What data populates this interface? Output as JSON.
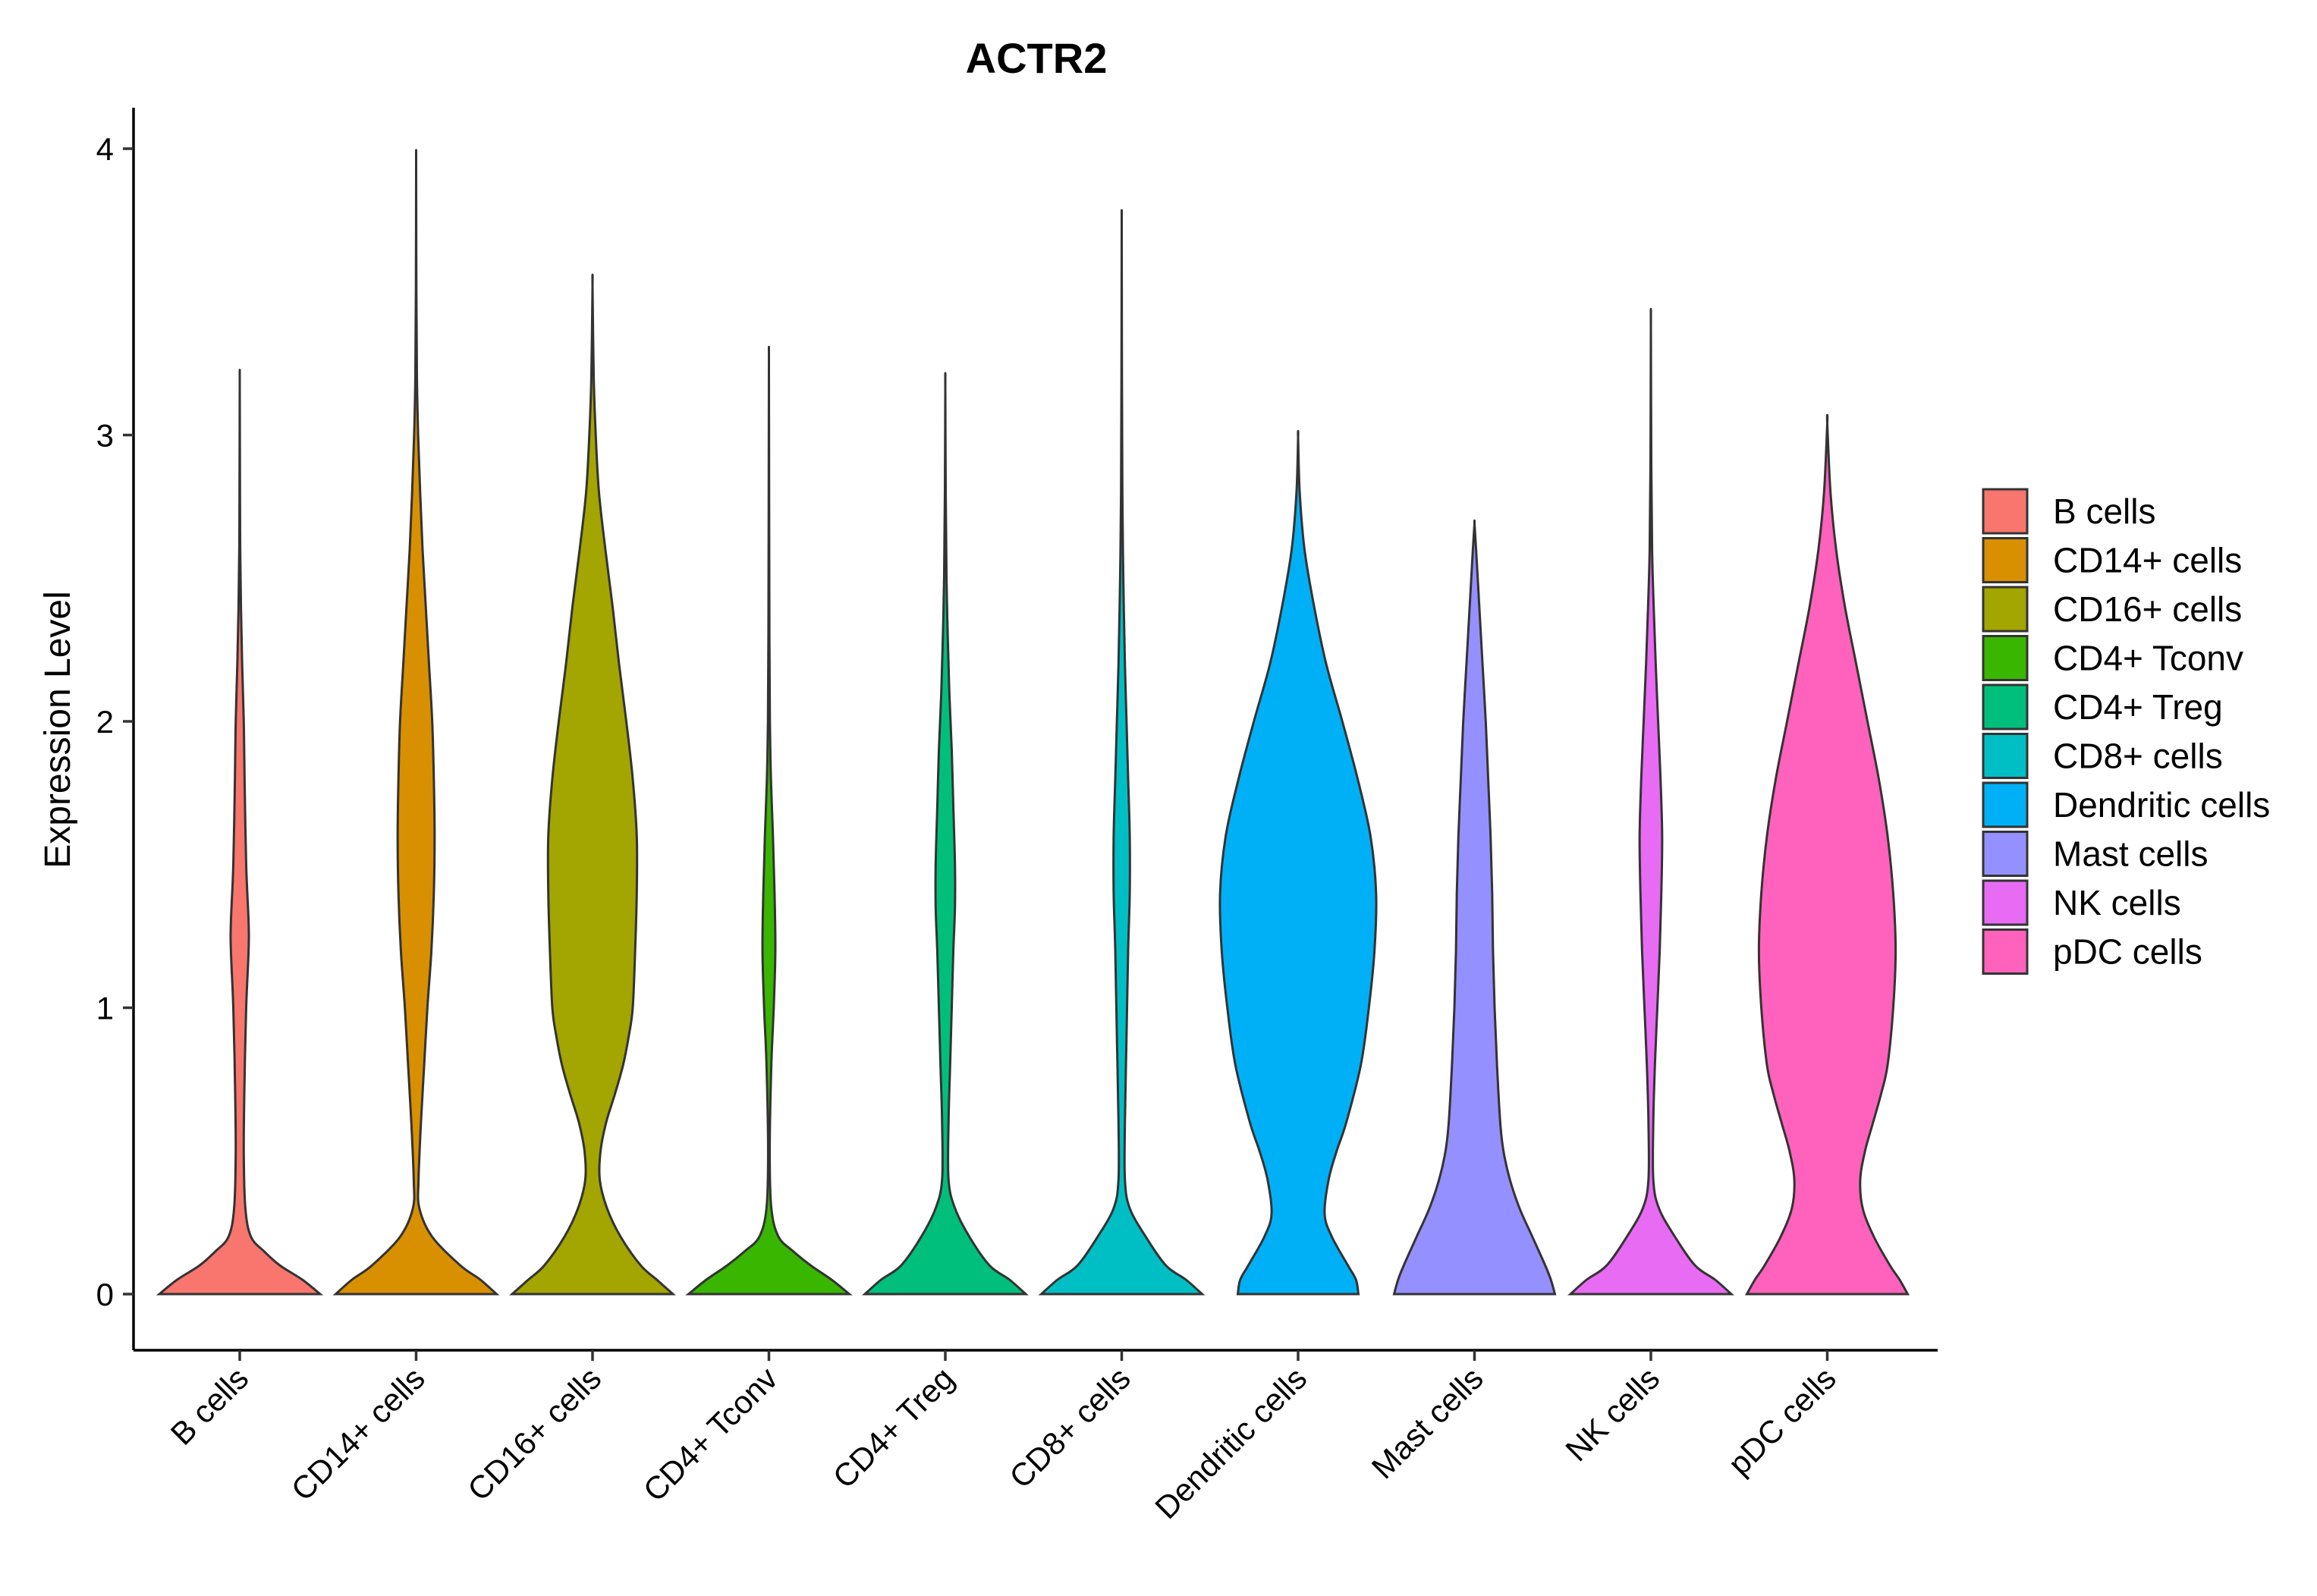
{
  "chart_data": {
    "type": "violin",
    "title": "ACTR2",
    "xlabel": "",
    "ylabel": "Expression Level",
    "ylim": [
      -0.2,
      4.15
    ],
    "yticks": [
      0,
      1,
      2,
      3,
      4
    ],
    "grid": false,
    "legend_position": "right",
    "categories": [
      "B cells",
      "CD14+ cells",
      "CD16+ cells",
      "CD4+ Tconv",
      "CD4+ Treg",
      "CD8+ cells",
      "Dendritic cells",
      "Mast cells",
      "NK cells",
      "pDC cells"
    ],
    "colors": [
      "#F8766D",
      "#D89000",
      "#A3A500",
      "#39B600",
      "#00BF7D",
      "#00BFC4",
      "#00B0F6",
      "#9590FF",
      "#E76BF3",
      "#FF62BC"
    ],
    "series": [
      {
        "name": "B cells",
        "max": 3.18,
        "profile": [
          [
            0,
            1.0
          ],
          [
            0.05,
            0.78
          ],
          [
            0.1,
            0.5
          ],
          [
            0.15,
            0.3
          ],
          [
            0.2,
            0.14
          ],
          [
            0.3,
            0.07
          ],
          [
            0.5,
            0.05
          ],
          [
            0.75,
            0.06
          ],
          [
            1.0,
            0.08
          ],
          [
            1.2,
            0.11
          ],
          [
            1.3,
            0.11
          ],
          [
            1.5,
            0.08
          ],
          [
            1.8,
            0.06
          ],
          [
            2.0,
            0.05
          ],
          [
            2.2,
            0.03
          ],
          [
            2.4,
            0.015
          ],
          [
            2.6,
            0.006
          ],
          [
            2.8,
            0.003
          ],
          [
            3.18,
            0.0
          ]
        ]
      },
      {
        "name": "CD14+ cells",
        "max": 3.94,
        "profile": [
          [
            0,
            1.0
          ],
          [
            0.05,
            0.8
          ],
          [
            0.1,
            0.55
          ],
          [
            0.2,
            0.2
          ],
          [
            0.3,
            0.04
          ],
          [
            0.4,
            0.03
          ],
          [
            0.6,
            0.06
          ],
          [
            0.8,
            0.1
          ],
          [
            1.0,
            0.14
          ],
          [
            1.2,
            0.19
          ],
          [
            1.4,
            0.22
          ],
          [
            1.6,
            0.23
          ],
          [
            1.8,
            0.22
          ],
          [
            2.0,
            0.2
          ],
          [
            2.2,
            0.16
          ],
          [
            2.4,
            0.12
          ],
          [
            2.6,
            0.08
          ],
          [
            2.8,
            0.05
          ],
          [
            3.0,
            0.025
          ],
          [
            3.2,
            0.01
          ],
          [
            3.5,
            0.003
          ],
          [
            3.94,
            0.0
          ]
        ]
      },
      {
        "name": "CD16+ cells",
        "max": 3.52,
        "profile": [
          [
            0,
            1.0
          ],
          [
            0.05,
            0.8
          ],
          [
            0.1,
            0.6
          ],
          [
            0.2,
            0.35
          ],
          [
            0.3,
            0.18
          ],
          [
            0.4,
            0.09
          ],
          [
            0.5,
            0.1
          ],
          [
            0.6,
            0.17
          ],
          [
            0.7,
            0.28
          ],
          [
            0.8,
            0.38
          ],
          [
            0.9,
            0.45
          ],
          [
            1.0,
            0.5
          ],
          [
            1.2,
            0.53
          ],
          [
            1.4,
            0.55
          ],
          [
            1.6,
            0.55
          ],
          [
            1.8,
            0.5
          ],
          [
            2.0,
            0.42
          ],
          [
            2.2,
            0.33
          ],
          [
            2.4,
            0.25
          ],
          [
            2.6,
            0.16
          ],
          [
            2.8,
            0.08
          ],
          [
            3.0,
            0.04
          ],
          [
            3.2,
            0.015
          ],
          [
            3.52,
            0.0
          ]
        ]
      },
      {
        "name": "CD4+ Tconv",
        "max": 3.24,
        "profile": [
          [
            0,
            1.0
          ],
          [
            0.05,
            0.78
          ],
          [
            0.1,
            0.52
          ],
          [
            0.15,
            0.3
          ],
          [
            0.2,
            0.12
          ],
          [
            0.3,
            0.03
          ],
          [
            0.5,
            0.01
          ],
          [
            0.8,
            0.03
          ],
          [
            1.0,
            0.06
          ],
          [
            1.2,
            0.08
          ],
          [
            1.4,
            0.07
          ],
          [
            1.6,
            0.05
          ],
          [
            1.8,
            0.025
          ],
          [
            2.0,
            0.012
          ],
          [
            2.3,
            0.006
          ],
          [
            2.7,
            0.003
          ],
          [
            3.24,
            0.0
          ]
        ]
      },
      {
        "name": "CD4+ Treg",
        "max": 3.17,
        "profile": [
          [
            0,
            1.0
          ],
          [
            0.05,
            0.8
          ],
          [
            0.1,
            0.55
          ],
          [
            0.2,
            0.3
          ],
          [
            0.3,
            0.12
          ],
          [
            0.4,
            0.04
          ],
          [
            0.6,
            0.04
          ],
          [
            0.8,
            0.06
          ],
          [
            1.0,
            0.08
          ],
          [
            1.2,
            0.1
          ],
          [
            1.35,
            0.12
          ],
          [
            1.5,
            0.12
          ],
          [
            1.7,
            0.1
          ],
          [
            1.9,
            0.08
          ],
          [
            2.1,
            0.05
          ],
          [
            2.3,
            0.03
          ],
          [
            2.5,
            0.015
          ],
          [
            2.8,
            0.005
          ],
          [
            3.17,
            0.0
          ]
        ]
      },
      {
        "name": "CD8+ cells",
        "max": 3.72,
        "profile": [
          [
            0,
            1.0
          ],
          [
            0.05,
            0.8
          ],
          [
            0.1,
            0.55
          ],
          [
            0.2,
            0.3
          ],
          [
            0.3,
            0.1
          ],
          [
            0.4,
            0.04
          ],
          [
            0.6,
            0.04
          ],
          [
            0.9,
            0.06
          ],
          [
            1.2,
            0.08
          ],
          [
            1.4,
            0.1
          ],
          [
            1.6,
            0.1
          ],
          [
            1.8,
            0.08
          ],
          [
            2.0,
            0.06
          ],
          [
            2.2,
            0.04
          ],
          [
            2.5,
            0.02
          ],
          [
            2.8,
            0.008
          ],
          [
            3.2,
            0.003
          ],
          [
            3.72,
            0.0
          ]
        ]
      },
      {
        "name": "Dendritic cells",
        "max": 2.99,
        "profile": [
          [
            0,
            0.75
          ],
          [
            0.05,
            0.72
          ],
          [
            0.1,
            0.62
          ],
          [
            0.2,
            0.42
          ],
          [
            0.28,
            0.33
          ],
          [
            0.4,
            0.38
          ],
          [
            0.5,
            0.48
          ],
          [
            0.6,
            0.6
          ],
          [
            0.8,
            0.78
          ],
          [
            1.0,
            0.88
          ],
          [
            1.2,
            0.95
          ],
          [
            1.4,
            0.97
          ],
          [
            1.6,
            0.9
          ],
          [
            1.8,
            0.74
          ],
          [
            2.0,
            0.55
          ],
          [
            2.2,
            0.35
          ],
          [
            2.4,
            0.2
          ],
          [
            2.6,
            0.08
          ],
          [
            2.8,
            0.02
          ],
          [
            2.99,
            0.0
          ]
        ]
      },
      {
        "name": "Mast cells",
        "max": 2.69,
        "profile": [
          [
            0,
            1.0
          ],
          [
            0.05,
            0.95
          ],
          [
            0.1,
            0.88
          ],
          [
            0.2,
            0.72
          ],
          [
            0.3,
            0.56
          ],
          [
            0.4,
            0.44
          ],
          [
            0.5,
            0.36
          ],
          [
            0.6,
            0.32
          ],
          [
            0.8,
            0.28
          ],
          [
            1.0,
            0.25
          ],
          [
            1.2,
            0.23
          ],
          [
            1.4,
            0.22
          ],
          [
            1.6,
            0.2
          ],
          [
            1.8,
            0.17
          ],
          [
            2.0,
            0.14
          ],
          [
            2.2,
            0.1
          ],
          [
            2.4,
            0.06
          ],
          [
            2.6,
            0.02
          ],
          [
            2.69,
            0.0
          ]
        ]
      },
      {
        "name": "NK cells",
        "max": 3.38,
        "profile": [
          [
            0,
            1.0
          ],
          [
            0.05,
            0.8
          ],
          [
            0.1,
            0.55
          ],
          [
            0.2,
            0.3
          ],
          [
            0.3,
            0.1
          ],
          [
            0.4,
            0.03
          ],
          [
            0.6,
            0.03
          ],
          [
            0.8,
            0.05
          ],
          [
            1.0,
            0.08
          ],
          [
            1.2,
            0.11
          ],
          [
            1.4,
            0.13
          ],
          [
            1.6,
            0.14
          ],
          [
            1.8,
            0.12
          ],
          [
            2.0,
            0.09
          ],
          [
            2.2,
            0.06
          ],
          [
            2.4,
            0.035
          ],
          [
            2.6,
            0.015
          ],
          [
            2.9,
            0.005
          ],
          [
            3.38,
            0.0
          ]
        ]
      },
      {
        "name": "pDC cells",
        "max": 3.04,
        "profile": [
          [
            0,
            1.0
          ],
          [
            0.05,
            0.9
          ],
          [
            0.1,
            0.78
          ],
          [
            0.2,
            0.58
          ],
          [
            0.3,
            0.44
          ],
          [
            0.4,
            0.41
          ],
          [
            0.5,
            0.47
          ],
          [
            0.6,
            0.57
          ],
          [
            0.7,
            0.67
          ],
          [
            0.8,
            0.75
          ],
          [
            1.0,
            0.82
          ],
          [
            1.2,
            0.85
          ],
          [
            1.4,
            0.82
          ],
          [
            1.6,
            0.75
          ],
          [
            1.8,
            0.64
          ],
          [
            2.0,
            0.5
          ],
          [
            2.2,
            0.36
          ],
          [
            2.4,
            0.22
          ],
          [
            2.6,
            0.11
          ],
          [
            2.8,
            0.04
          ],
          [
            3.04,
            0.0
          ]
        ]
      }
    ]
  }
}
